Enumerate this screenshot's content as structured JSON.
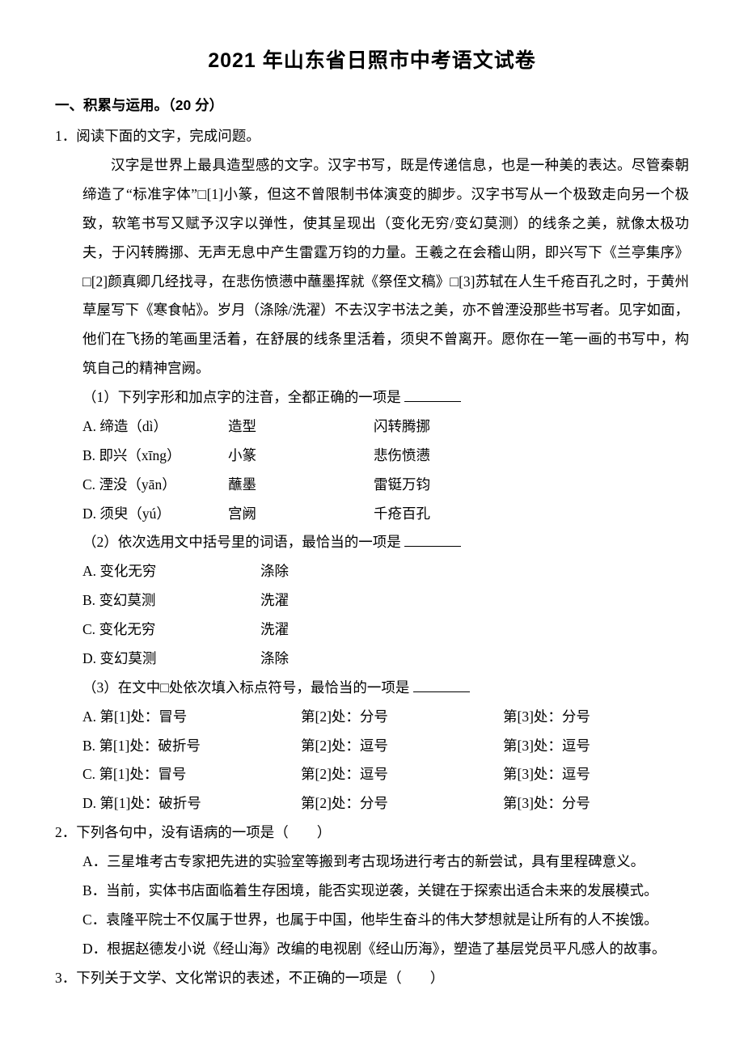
{
  "title": "2021 年山东省日照市中考语文试卷",
  "section1": {
    "heading": "一、积累与运用。（20 分）"
  },
  "q1": {
    "stem": "1．阅读下面的文字，完成问题。",
    "passage": "汉字是世界上最具造型感的文字。汉字书写，既是传递信息，也是一种美的表达。尽管秦朝缔造了“标准字体”□[1]小篆，但这不曾限制书体演变的脚步。汉字书写从一个极致走向另一个极致，软笔书写又赋予汉字以弹性，使其呈现出（变化无穷/变幻莫测）的线条之美，就像太极功夫，于闪转腾挪、无声无息中产生雷霆万钧的力量。王羲之在会稽山阴，即兴写下《兰亭集序》□[2]颜真卿几经找寻，在悲伤愤懑中蘸墨挥就《祭侄文稿》□[3]苏轼在人生千疮百孔之时，于黄州草屋写下《寒食帖》。岁月（涤除/洗濯）不去汉字书法之美，亦不曾湮没那些书写者。见字如面，他们在飞扬的笔画里活着，在舒展的线条里活着，须臾不曾离开。愿你在一笔一画的书写中，构筑自己的精神宫阙。",
    "sub1": {
      "stem": "（1）下列字形和加点字的注音，全都正确的一项是",
      "options": [
        {
          "label": "A.",
          "c1": "缔造（dì）",
          "c2": "造型",
          "c3": "闪转腾挪"
        },
        {
          "label": "B.",
          "c1": "即兴（xīng）",
          "c2": "小篆",
          "c3": "悲伤愤懑"
        },
        {
          "label": "C.",
          "c1": "湮没（yān）",
          "c2": "蘸墨",
          "c3": "雷铤万钧"
        },
        {
          "label": "D.",
          "c1": "须臾（yú）",
          "c2": "宫阙",
          "c3": "千疮百孔"
        }
      ]
    },
    "sub2": {
      "stem": "（2）依次选用文中括号里的词语，最恰当的一项是",
      "options": [
        {
          "label": "A.",
          "c1": "变化无穷",
          "c2": "涤除"
        },
        {
          "label": "B.",
          "c1": "变幻莫测",
          "c2": "洗濯"
        },
        {
          "label": "C.",
          "c1": "变化无穷",
          "c2": "洗濯"
        },
        {
          "label": "D.",
          "c1": "变幻莫测",
          "c2": "涤除"
        }
      ]
    },
    "sub3": {
      "stem": "（3）在文中□处依次填入标点符号，最恰当的一项是",
      "options": [
        {
          "label": "A.",
          "p1": "第[1]处：冒号",
          "p2": "第[2]处：分号",
          "p3": "第[3]处：分号"
        },
        {
          "label": "B.",
          "p1": "第[1]处：破折号",
          "p2": "第[2]处：逗号",
          "p3": "第[3]处：逗号"
        },
        {
          "label": "C.",
          "p1": "第[1]处：冒号",
          "p2": "第[2]处：逗号",
          "p3": "第[3]处：逗号"
        },
        {
          "label": "D.",
          "p1": "第[1]处：破折号",
          "p2": "第[2]处：分号",
          "p3": "第[3]处：分号"
        }
      ]
    }
  },
  "q2": {
    "stem": "2．下列各句中，没有语病的一项是（　　）",
    "options": [
      "A．三星堆考古专家把先进的实验室等搬到考古现场进行考古的新尝试，具有里程碑意义。",
      "B．当前，实体书店面临着生存困境，能否实现逆袭，关键在于探索出适合未来的发展模式。",
      "C．袁隆平院士不仅属于世界，也属于中国，他毕生奋斗的伟大梦想就是让所有的人不挨饿。",
      "D．根据赵德发小说《经山海》改编的电视剧《经山历海》，塑造了基层党员平凡感人的故事。"
    ]
  },
  "q3": {
    "stem": "3．下列关于文学、文化常识的表述，不正确的一项是（　　）"
  }
}
